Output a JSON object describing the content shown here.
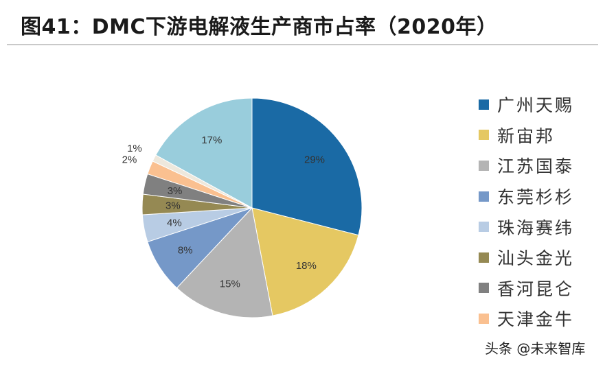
{
  "title": "图41：DMC下游电解液生产商市占率（2020年）",
  "watermark": "头条 @未来智库",
  "chart_data": {
    "type": "pie",
    "title": "图41：DMC下游电解液生产商市占率（2020年）",
    "slices": [
      {
        "name": "广州天赐",
        "value": 29,
        "label": "29%",
        "color": "#1a6aa5"
      },
      {
        "name": "新宙邦",
        "value": 18,
        "label": "18%",
        "color": "#e5c862"
      },
      {
        "name": "江苏国泰",
        "value": 15,
        "label": "15%",
        "color": "#b4b4b4"
      },
      {
        "name": "东莞杉杉",
        "value": 8,
        "label": "8%",
        "color": "#7598c8"
      },
      {
        "name": "珠海赛纬",
        "value": 4,
        "label": "4%",
        "color": "#b8cce4"
      },
      {
        "name": "汕头金光",
        "value": 3,
        "label": "3%",
        "color": "#958953"
      },
      {
        "name": "香河昆仑",
        "value": 3,
        "label": "3%",
        "color": "#808080"
      },
      {
        "name": "天津金牛",
        "value": 2,
        "label": "2%",
        "color": "#fac090"
      },
      {
        "name": "",
        "value": 1,
        "label": "1%",
        "color": "#eee8dc"
      },
      {
        "name": "",
        "value": 17,
        "label": "17%",
        "color": "#99cddc"
      }
    ],
    "legend_placement": "right"
  }
}
